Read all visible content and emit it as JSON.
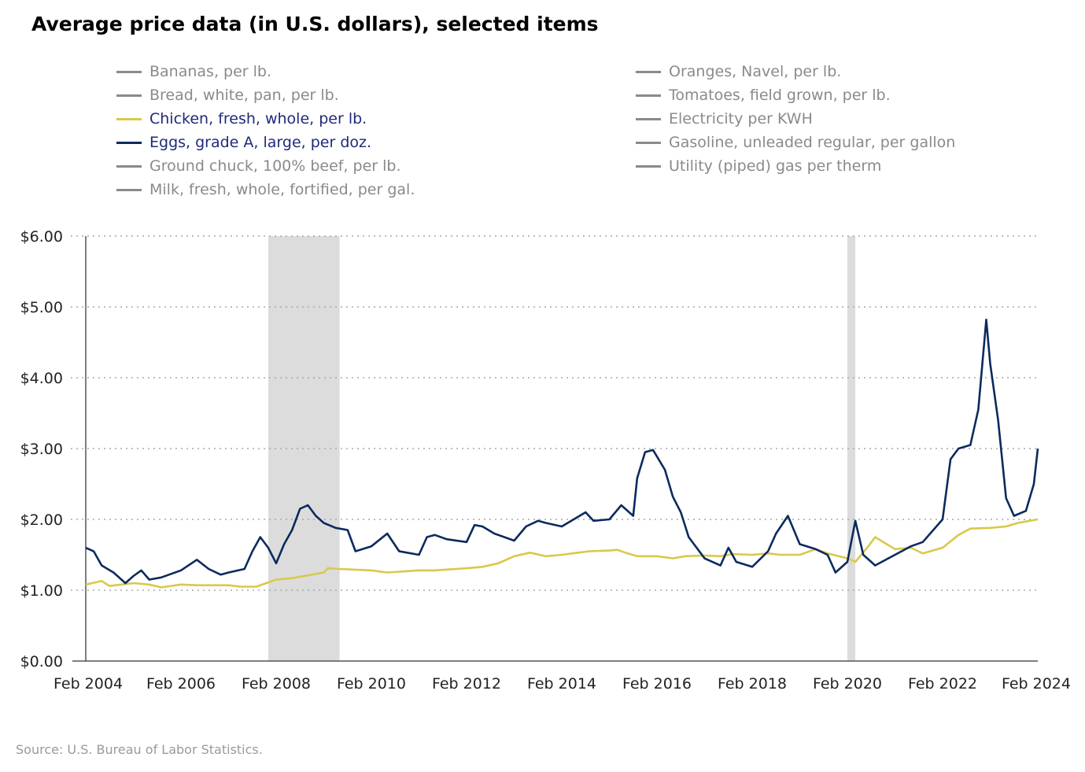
{
  "title": "Average price data (in U.S. dollars), selected items",
  "source": "Source: U.S. Bureau of Labor Statistics.",
  "legend": {
    "left": [
      {
        "label": "Bananas, per lb.",
        "color": "#8a8a8a",
        "active": false
      },
      {
        "label": "Bread, white, pan, per lb.",
        "color": "#8a8a8a",
        "active": false
      },
      {
        "label": "Chicken, fresh, whole, per lb.",
        "color": "#d8c94c",
        "active": true
      },
      {
        "label": "Eggs, grade A, large, per doz.",
        "color": "#0b2a5e",
        "active": true
      },
      {
        "label": "Ground chuck, 100% beef, per lb.",
        "color": "#8a8a8a",
        "active": false
      },
      {
        "label": "Milk, fresh, whole, fortified, per gal.",
        "color": "#8a8a8a",
        "active": false
      }
    ],
    "right": [
      {
        "label": "Oranges, Navel, per lb.",
        "color": "#8a8a8a",
        "active": false
      },
      {
        "label": "Tomatoes, field grown, per lb.",
        "color": "#8a8a8a",
        "active": false
      },
      {
        "label": "Electricity per KWH",
        "color": "#8a8a8a",
        "active": false
      },
      {
        "label": "Gasoline, unleaded regular, per gallon",
        "color": "#8a8a8a",
        "active": false
      },
      {
        "label": "Utility (piped) gas per therm",
        "color": "#8a8a8a",
        "active": false
      }
    ]
  },
  "chart_data": {
    "type": "line",
    "ylim": [
      0,
      6
    ],
    "xlim": [
      "2004-02",
      "2024-02"
    ],
    "y_ticks": [
      0,
      1,
      2,
      3,
      4,
      5,
      6
    ],
    "y_tick_labels": [
      "$0.00",
      "$1.00",
      "$2.00",
      "$3.00",
      "$4.00",
      "$5.00",
      "$6.00"
    ],
    "x_ticks": [
      "2004-02",
      "2006-02",
      "2008-02",
      "2010-02",
      "2012-02",
      "2014-02",
      "2016-02",
      "2018-02",
      "2020-02",
      "2022-02",
      "2024-02"
    ],
    "x_tick_labels": [
      "Feb 2004",
      "Feb 2006",
      "Feb 2008",
      "Feb 2010",
      "Feb 2012",
      "Feb 2014",
      "Feb 2016",
      "Feb 2018",
      "Feb 2020",
      "Feb 2022",
      "Feb 2024"
    ],
    "grid": "horizontal dotted",
    "recessions": [
      {
        "start": "2007-12",
        "end": "2009-06"
      },
      {
        "start": "2020-02",
        "end": "2020-04"
      }
    ],
    "series": [
      {
        "name": "Chicken, fresh, whole, per lb.",
        "color": "#d8c94c",
        "points": [
          [
            "2004-02",
            1.08
          ],
          [
            "2004-06",
            1.13
          ],
          [
            "2004-08",
            1.06
          ],
          [
            "2005-02",
            1.1
          ],
          [
            "2005-06",
            1.08
          ],
          [
            "2005-09",
            1.04
          ],
          [
            "2006-02",
            1.08
          ],
          [
            "2006-06",
            1.07
          ],
          [
            "2007-02",
            1.07
          ],
          [
            "2007-05",
            1.05
          ],
          [
            "2007-09",
            1.05
          ],
          [
            "2008-02",
            1.15
          ],
          [
            "2008-06",
            1.17
          ],
          [
            "2008-09",
            1.2
          ],
          [
            "2009-02",
            1.25
          ],
          [
            "2009-03",
            1.31
          ],
          [
            "2009-06",
            1.3
          ],
          [
            "2010-02",
            1.28
          ],
          [
            "2010-06",
            1.25
          ],
          [
            "2011-02",
            1.28
          ],
          [
            "2011-06",
            1.28
          ],
          [
            "2012-02",
            1.31
          ],
          [
            "2012-06",
            1.33
          ],
          [
            "2012-10",
            1.38
          ],
          [
            "2013-02",
            1.48
          ],
          [
            "2013-06",
            1.53
          ],
          [
            "2013-10",
            1.48
          ],
          [
            "2014-02",
            1.5
          ],
          [
            "2014-06",
            1.53
          ],
          [
            "2014-09",
            1.55
          ],
          [
            "2015-02",
            1.56
          ],
          [
            "2015-04",
            1.57
          ],
          [
            "2015-06",
            1.53
          ],
          [
            "2015-09",
            1.48
          ],
          [
            "2016-02",
            1.48
          ],
          [
            "2016-06",
            1.45
          ],
          [
            "2016-09",
            1.48
          ],
          [
            "2017-02",
            1.49
          ],
          [
            "2017-06",
            1.48
          ],
          [
            "2017-09",
            1.51
          ],
          [
            "2018-02",
            1.5
          ],
          [
            "2018-06",
            1.52
          ],
          [
            "2018-09",
            1.5
          ],
          [
            "2019-02",
            1.5
          ],
          [
            "2019-06",
            1.58
          ],
          [
            "2019-09",
            1.52
          ],
          [
            "2020-02",
            1.45
          ],
          [
            "2020-04",
            1.4
          ],
          [
            "2020-07",
            1.6
          ],
          [
            "2020-09",
            1.75
          ],
          [
            "2021-02",
            1.58
          ],
          [
            "2021-06",
            1.6
          ],
          [
            "2021-09",
            1.52
          ],
          [
            "2022-02",
            1.6
          ],
          [
            "2022-06",
            1.78
          ],
          [
            "2022-09",
            1.87
          ],
          [
            "2023-02",
            1.88
          ],
          [
            "2023-06",
            1.9
          ],
          [
            "2023-09",
            1.95
          ],
          [
            "2024-02",
            2.0
          ]
        ]
      },
      {
        "name": "Eggs, grade A, large, per doz.",
        "color": "#0b2a5e",
        "points": [
          [
            "2004-02",
            1.6
          ],
          [
            "2004-04",
            1.55
          ],
          [
            "2004-06",
            1.35
          ],
          [
            "2004-09",
            1.25
          ],
          [
            "2004-12",
            1.1
          ],
          [
            "2005-02",
            1.2
          ],
          [
            "2005-04",
            1.28
          ],
          [
            "2005-06",
            1.15
          ],
          [
            "2005-09",
            1.18
          ],
          [
            "2006-02",
            1.28
          ],
          [
            "2006-06",
            1.43
          ],
          [
            "2006-09",
            1.3
          ],
          [
            "2006-12",
            1.22
          ],
          [
            "2007-02",
            1.25
          ],
          [
            "2007-06",
            1.3
          ],
          [
            "2007-08",
            1.55
          ],
          [
            "2007-10",
            1.75
          ],
          [
            "2007-12",
            1.6
          ],
          [
            "2008-02",
            1.38
          ],
          [
            "2008-04",
            1.65
          ],
          [
            "2008-06",
            1.85
          ],
          [
            "2008-08",
            2.15
          ],
          [
            "2008-10",
            2.2
          ],
          [
            "2008-12",
            2.05
          ],
          [
            "2009-02",
            1.95
          ],
          [
            "2009-05",
            1.88
          ],
          [
            "2009-08",
            1.85
          ],
          [
            "2009-10",
            1.55
          ],
          [
            "2010-02",
            1.62
          ],
          [
            "2010-06",
            1.8
          ],
          [
            "2010-09",
            1.55
          ],
          [
            "2011-02",
            1.5
          ],
          [
            "2011-04",
            1.75
          ],
          [
            "2011-06",
            1.78
          ],
          [
            "2011-09",
            1.72
          ],
          [
            "2012-02",
            1.68
          ],
          [
            "2012-04",
            1.92
          ],
          [
            "2012-06",
            1.9
          ],
          [
            "2012-09",
            1.8
          ],
          [
            "2013-02",
            1.7
          ],
          [
            "2013-05",
            1.9
          ],
          [
            "2013-08",
            1.98
          ],
          [
            "2013-10",
            1.95
          ],
          [
            "2014-02",
            1.9
          ],
          [
            "2014-05",
            2.0
          ],
          [
            "2014-08",
            2.1
          ],
          [
            "2014-10",
            1.98
          ],
          [
            "2015-02",
            2.0
          ],
          [
            "2015-05",
            2.2
          ],
          [
            "2015-08",
            2.05
          ],
          [
            "2015-09",
            2.58
          ],
          [
            "2015-11",
            2.95
          ],
          [
            "2016-01",
            2.98
          ],
          [
            "2016-04",
            2.7
          ],
          [
            "2016-06",
            2.32
          ],
          [
            "2016-08",
            2.1
          ],
          [
            "2016-10",
            1.75
          ],
          [
            "2017-02",
            1.45
          ],
          [
            "2017-06",
            1.35
          ],
          [
            "2017-08",
            1.6
          ],
          [
            "2017-10",
            1.4
          ],
          [
            "2018-02",
            1.33
          ],
          [
            "2018-06",
            1.55
          ],
          [
            "2018-08",
            1.8
          ],
          [
            "2018-11",
            2.05
          ],
          [
            "2019-02",
            1.65
          ],
          [
            "2019-06",
            1.58
          ],
          [
            "2019-09",
            1.5
          ],
          [
            "2019-11",
            1.25
          ],
          [
            "2020-02",
            1.4
          ],
          [
            "2020-04",
            1.98
          ],
          [
            "2020-06",
            1.5
          ],
          [
            "2020-09",
            1.35
          ],
          [
            "2021-02",
            1.5
          ],
          [
            "2021-06",
            1.62
          ],
          [
            "2021-09",
            1.68
          ],
          [
            "2022-02",
            2.0
          ],
          [
            "2022-04",
            2.85
          ],
          [
            "2022-06",
            3.0
          ],
          [
            "2022-09",
            3.05
          ],
          [
            "2022-11",
            3.55
          ],
          [
            "2023-01",
            4.82
          ],
          [
            "2023-02",
            4.2
          ],
          [
            "2023-04",
            3.4
          ],
          [
            "2023-06",
            2.3
          ],
          [
            "2023-08",
            2.05
          ],
          [
            "2023-11",
            2.12
          ],
          [
            "2024-01",
            2.5
          ],
          [
            "2024-02",
            3.0
          ]
        ]
      }
    ]
  }
}
